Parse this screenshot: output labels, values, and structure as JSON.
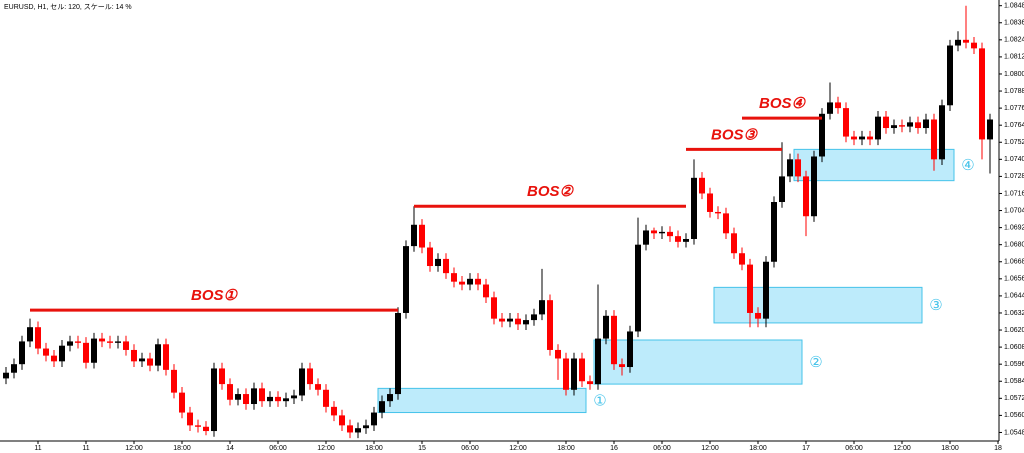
{
  "chart_data": {
    "type": "candlestick",
    "title": "EURUSD, H1, セル: 120, スケール: 14 %",
    "open": [
      1.0586,
      1.059,
      1.0596,
      1.0612,
      1.0622,
      1.0607,
      1.0602,
      1.0598,
      1.0609,
      1.0612,
      1.0611,
      1.0597,
      1.0614,
      1.0612,
      1.0611,
      1.0612,
      1.0606,
      1.0598,
      1.06,
      1.0595,
      1.061,
      1.0592,
      1.0576,
      1.0562,
      1.0553,
      1.0552,
      1.0549,
      1.0593,
      1.0582,
      1.0571,
      1.0575,
      1.0568,
      1.0579,
      1.057,
      1.0573,
      1.057,
      1.0572,
      1.0574,
      1.0593,
      1.0582,
      1.0578,
      1.0566,
      1.056,
      1.0553,
      1.0548,
      1.0551,
      1.0553,
      1.0562,
      1.057,
      1.0575,
      1.0632,
      1.0679,
      1.0694,
      1.0678,
      1.0665,
      1.067,
      1.066,
      1.0654,
      1.0652,
      1.0656,
      1.0652,
      1.0643,
      1.0628,
      1.0626,
      1.0628,
      1.0624,
      1.0627,
      1.0631,
      1.0641,
      1.0606,
      1.06,
      1.0578,
      1.06,
      1.0584,
      1.0582,
      1.0614,
      1.063,
      1.0596,
      1.0594,
      1.0619,
      1.068,
      1.069,
      1.0688,
      1.0689,
      1.0686,
      1.0682,
      1.0684,
      1.0727,
      1.0716,
      1.0703,
      1.0702,
      1.0688,
      1.0674,
      1.0666,
      1.0632,
      1.0628,
      1.0668,
      1.071,
      1.0728,
      1.074,
      1.0728,
      1.07,
      1.0742,
      1.0772,
      1.078,
      1.0776,
      1.0756,
      1.0754,
      1.0756,
      1.0754,
      1.077,
      1.0762,
      1.0764,
      1.0763,
      1.0766,
      1.0762,
      1.0768,
      1.074,
      1.0778,
      1.082,
      1.0824,
      1.0822,
      1.0818,
      1.0754
    ],
    "high": [
      1.0594,
      1.06,
      1.0616,
      1.0628,
      1.0626,
      1.0611,
      1.0606,
      1.0613,
      1.0616,
      1.0616,
      1.0615,
      1.0618,
      1.0618,
      1.0616,
      1.0616,
      1.0616,
      1.061,
      1.0604,
      1.0604,
      1.0614,
      1.0614,
      1.0596,
      1.058,
      1.0566,
      1.0557,
      1.0556,
      1.0597,
      1.0597,
      1.0586,
      1.0579,
      1.0579,
      1.0583,
      1.0583,
      1.0577,
      1.0577,
      1.0576,
      1.0578,
      1.0597,
      1.0597,
      1.0586,
      1.0582,
      1.057,
      1.0564,
      1.0557,
      1.0555,
      1.0557,
      1.0566,
      1.0574,
      1.0579,
      1.0636,
      1.0683,
      1.0707,
      1.0698,
      1.0682,
      1.0674,
      1.0674,
      1.0664,
      1.0658,
      1.066,
      1.066,
      1.0656,
      1.0647,
      1.0632,
      1.0632,
      1.0632,
      1.0631,
      1.0635,
      1.0663,
      1.0645,
      1.061,
      1.0604,
      1.0604,
      1.0604,
      1.0588,
      1.0652,
      1.0634,
      1.0634,
      1.06,
      1.0623,
      1.0699,
      1.0694,
      1.0692,
      1.0693,
      1.0693,
      1.069,
      1.0688,
      1.074,
      1.0731,
      1.072,
      1.0707,
      1.0706,
      1.0692,
      1.0678,
      1.067,
      1.0636,
      1.0672,
      1.0714,
      1.0752,
      1.0744,
      1.0744,
      1.0732,
      1.0746,
      1.0776,
      1.0794,
      1.0784,
      1.078,
      1.076,
      1.076,
      1.076,
      1.0774,
      1.0774,
      1.0768,
      1.0768,
      1.077,
      1.077,
      1.0772,
      1.0772,
      1.0782,
      1.0824,
      1.083,
      1.0848,
      1.0826,
      1.0822,
      1.0772
    ],
    "low": [
      1.0582,
      1.0586,
      1.0592,
      1.0608,
      1.0603,
      1.0598,
      1.0594,
      1.0594,
      1.0605,
      1.0607,
      1.0593,
      1.0593,
      1.0608,
      1.0607,
      1.0607,
      1.0602,
      1.0594,
      1.0594,
      1.0591,
      1.0591,
      1.0588,
      1.0572,
      1.0558,
      1.0549,
      1.0548,
      1.0546,
      1.0545,
      1.0578,
      1.0567,
      1.0567,
      1.0564,
      1.0564,
      1.0566,
      1.0566,
      1.0566,
      1.0566,
      1.0568,
      1.057,
      1.0578,
      1.0574,
      1.0562,
      1.0556,
      1.0549,
      1.0544,
      1.0544,
      1.0547,
      1.0549,
      1.0558,
      1.0566,
      1.0571,
      1.0628,
      1.0675,
      1.0674,
      1.0661,
      1.0661,
      1.0656,
      1.065,
      1.0648,
      1.0648,
      1.0648,
      1.0639,
      1.0624,
      1.0622,
      1.0622,
      1.062,
      1.062,
      1.0623,
      1.0627,
      1.0602,
      1.0585,
      1.0574,
      1.0574,
      1.058,
      1.0578,
      1.0578,
      1.061,
      1.0592,
      1.0588,
      1.059,
      1.0615,
      1.0676,
      1.0684,
      1.0684,
      1.0682,
      1.0678,
      1.0678,
      1.068,
      1.0712,
      1.0699,
      1.0698,
      1.0684,
      1.067,
      1.0662,
      1.0622,
      1.0622,
      1.0622,
      1.0664,
      1.0706,
      1.0724,
      1.0724,
      1.0686,
      1.0696,
      1.0738,
      1.0768,
      1.0772,
      1.0752,
      1.075,
      1.075,
      1.075,
      1.075,
      1.0758,
      1.0758,
      1.0759,
      1.0759,
      1.0758,
      1.0758,
      1.0732,
      1.0736,
      1.0774,
      1.0816,
      1.0818,
      1.0814,
      1.074,
      1.073
    ],
    "close": [
      1.059,
      1.0596,
      1.0612,
      1.0622,
      1.0607,
      1.0602,
      1.0598,
      1.0609,
      1.0612,
      1.0611,
      1.0597,
      1.0614,
      1.0612,
      1.0611,
      1.0612,
      1.0606,
      1.0598,
      1.06,
      1.0595,
      1.061,
      1.0592,
      1.0576,
      1.0562,
      1.0553,
      1.0552,
      1.0549,
      1.0593,
      1.0582,
      1.0571,
      1.0575,
      1.0568,
      1.0579,
      1.057,
      1.0573,
      1.057,
      1.0572,
      1.0574,
      1.0593,
      1.0582,
      1.0578,
      1.0566,
      1.056,
      1.0553,
      1.0548,
      1.0551,
      1.0553,
      1.0562,
      1.057,
      1.0575,
      1.0632,
      1.0679,
      1.0694,
      1.0678,
      1.0665,
      1.067,
      1.066,
      1.0654,
      1.0652,
      1.0656,
      1.0652,
      1.0643,
      1.0628,
      1.0626,
      1.0628,
      1.0624,
      1.0627,
      1.0631,
      1.0641,
      1.0606,
      1.06,
      1.0578,
      1.06,
      1.0584,
      1.0582,
      1.0614,
      1.063,
      1.0596,
      1.0594,
      1.0619,
      1.068,
      1.069,
      1.0688,
      1.0689,
      1.0686,
      1.0682,
      1.0684,
      1.0727,
      1.0716,
      1.0703,
      1.0702,
      1.0688,
      1.0674,
      1.0666,
      1.0632,
      1.0628,
      1.0668,
      1.071,
      1.0728,
      1.074,
      1.0728,
      1.07,
      1.0742,
      1.0772,
      1.078,
      1.0776,
      1.0756,
      1.0754,
      1.0756,
      1.0754,
      1.077,
      1.0762,
      1.0764,
      1.0763,
      1.0766,
      1.0762,
      1.0768,
      1.074,
      1.0778,
      1.082,
      1.0824,
      1.0822,
      1.0818,
      1.0754,
      1.0768
    ],
    "up_color": "#000000",
    "down_color": "#ff0000",
    "ylim": [
      1.0542,
      1.0852
    ],
    "yticks": [
      {
        "value": 1.0848,
        "label": "1.08480"
      },
      {
        "value": 1.0836,
        "label": "1.08360"
      },
      {
        "value": 1.0824,
        "label": "1.08240"
      },
      {
        "value": 1.0812,
        "label": "1.08120"
      },
      {
        "value": 1.08,
        "label": "1.08000"
      },
      {
        "value": 1.0788,
        "label": "1.07880"
      },
      {
        "value": 1.0776,
        "label": "1.07760"
      },
      {
        "value": 1.0764,
        "label": "1.07640"
      },
      {
        "value": 1.0752,
        "label": "1.07520"
      },
      {
        "value": 1.074,
        "label": "1.07400"
      },
      {
        "value": 1.0728,
        "label": "1.07280"
      },
      {
        "value": 1.0716,
        "label": "1.07160"
      },
      {
        "value": 1.0704,
        "label": "1.07040"
      },
      {
        "value": 1.0692,
        "label": "1.06920"
      },
      {
        "value": 1.068,
        "label": "1.06800"
      },
      {
        "value": 1.0668,
        "label": "1.06680"
      },
      {
        "value": 1.0656,
        "label": "1.06560"
      },
      {
        "value": 1.0644,
        "label": "1.06440"
      },
      {
        "value": 1.0632,
        "label": "1.06320"
      },
      {
        "value": 1.062,
        "label": "1.06200"
      },
      {
        "value": 1.0608,
        "label": "1.06080"
      },
      {
        "value": 1.0596,
        "label": "1.05960"
      },
      {
        "value": 1.0584,
        "label": "1.05840"
      },
      {
        "value": 1.0572,
        "label": "1.05720"
      },
      {
        "value": 1.056,
        "label": "1.05600"
      },
      {
        "value": 1.0548,
        "label": "1.05480"
      }
    ],
    "xticks": [
      {
        "value": 4,
        "label": "11"
      },
      {
        "value": 10,
        "label": "11"
      },
      {
        "value": 16,
        "label": "12:00"
      },
      {
        "value": 22,
        "label": "18:00"
      },
      {
        "value": 28,
        "label": "14"
      },
      {
        "value": 34,
        "label": "06:00"
      },
      {
        "value": 40,
        "label": "12:00"
      },
      {
        "value": 46,
        "label": "18:00"
      },
      {
        "value": 52,
        "label": "15"
      },
      {
        "value": 58,
        "label": "06:00"
      },
      {
        "value": 64,
        "label": "12:00"
      },
      {
        "value": 70,
        "label": "18:00"
      },
      {
        "value": 76,
        "label": "16"
      },
      {
        "value": 82,
        "label": "06:00"
      },
      {
        "value": 88,
        "label": "12:00"
      },
      {
        "value": 94,
        "label": "18:00"
      },
      {
        "value": 100,
        "label": "17"
      },
      {
        "value": 106,
        "label": "06:00"
      },
      {
        "value": 112,
        "label": "12:00"
      },
      {
        "value": 118,
        "label": "18:00"
      },
      {
        "value": 124,
        "label": "18"
      }
    ],
    "bos": [
      {
        "label": "BOS①",
        "level": 1.0634,
        "from": 3,
        "to": 49,
        "color": "#e8120c"
      },
      {
        "label": "BOS②",
        "level": 1.0707,
        "from": 51,
        "to": 85,
        "color": "#e8120c"
      },
      {
        "label": "BOS③",
        "level": 1.0747,
        "from": 85,
        "to": 97,
        "color": "#e8120c"
      },
      {
        "label": "BOS④",
        "level": 1.0769,
        "from": 92,
        "to": 102,
        "color": "#e8120c"
      }
    ],
    "zones": [
      {
        "label": "①",
        "top": 1.0579,
        "bottom": 1.0562,
        "from": 47,
        "to": 72
      },
      {
        "label": "②",
        "top": 1.0613,
        "bottom": 1.0582,
        "from": 74,
        "to": 99
      },
      {
        "label": "③",
        "top": 1.065,
        "bottom": 1.0625,
        "from": 89,
        "to": 114
      },
      {
        "label": "④",
        "top": 1.0747,
        "bottom": 1.0725,
        "from": 99,
        "to": 118
      }
    ],
    "zone_fill": "#bdebfb",
    "zone_stroke": "#45c3ea"
  }
}
